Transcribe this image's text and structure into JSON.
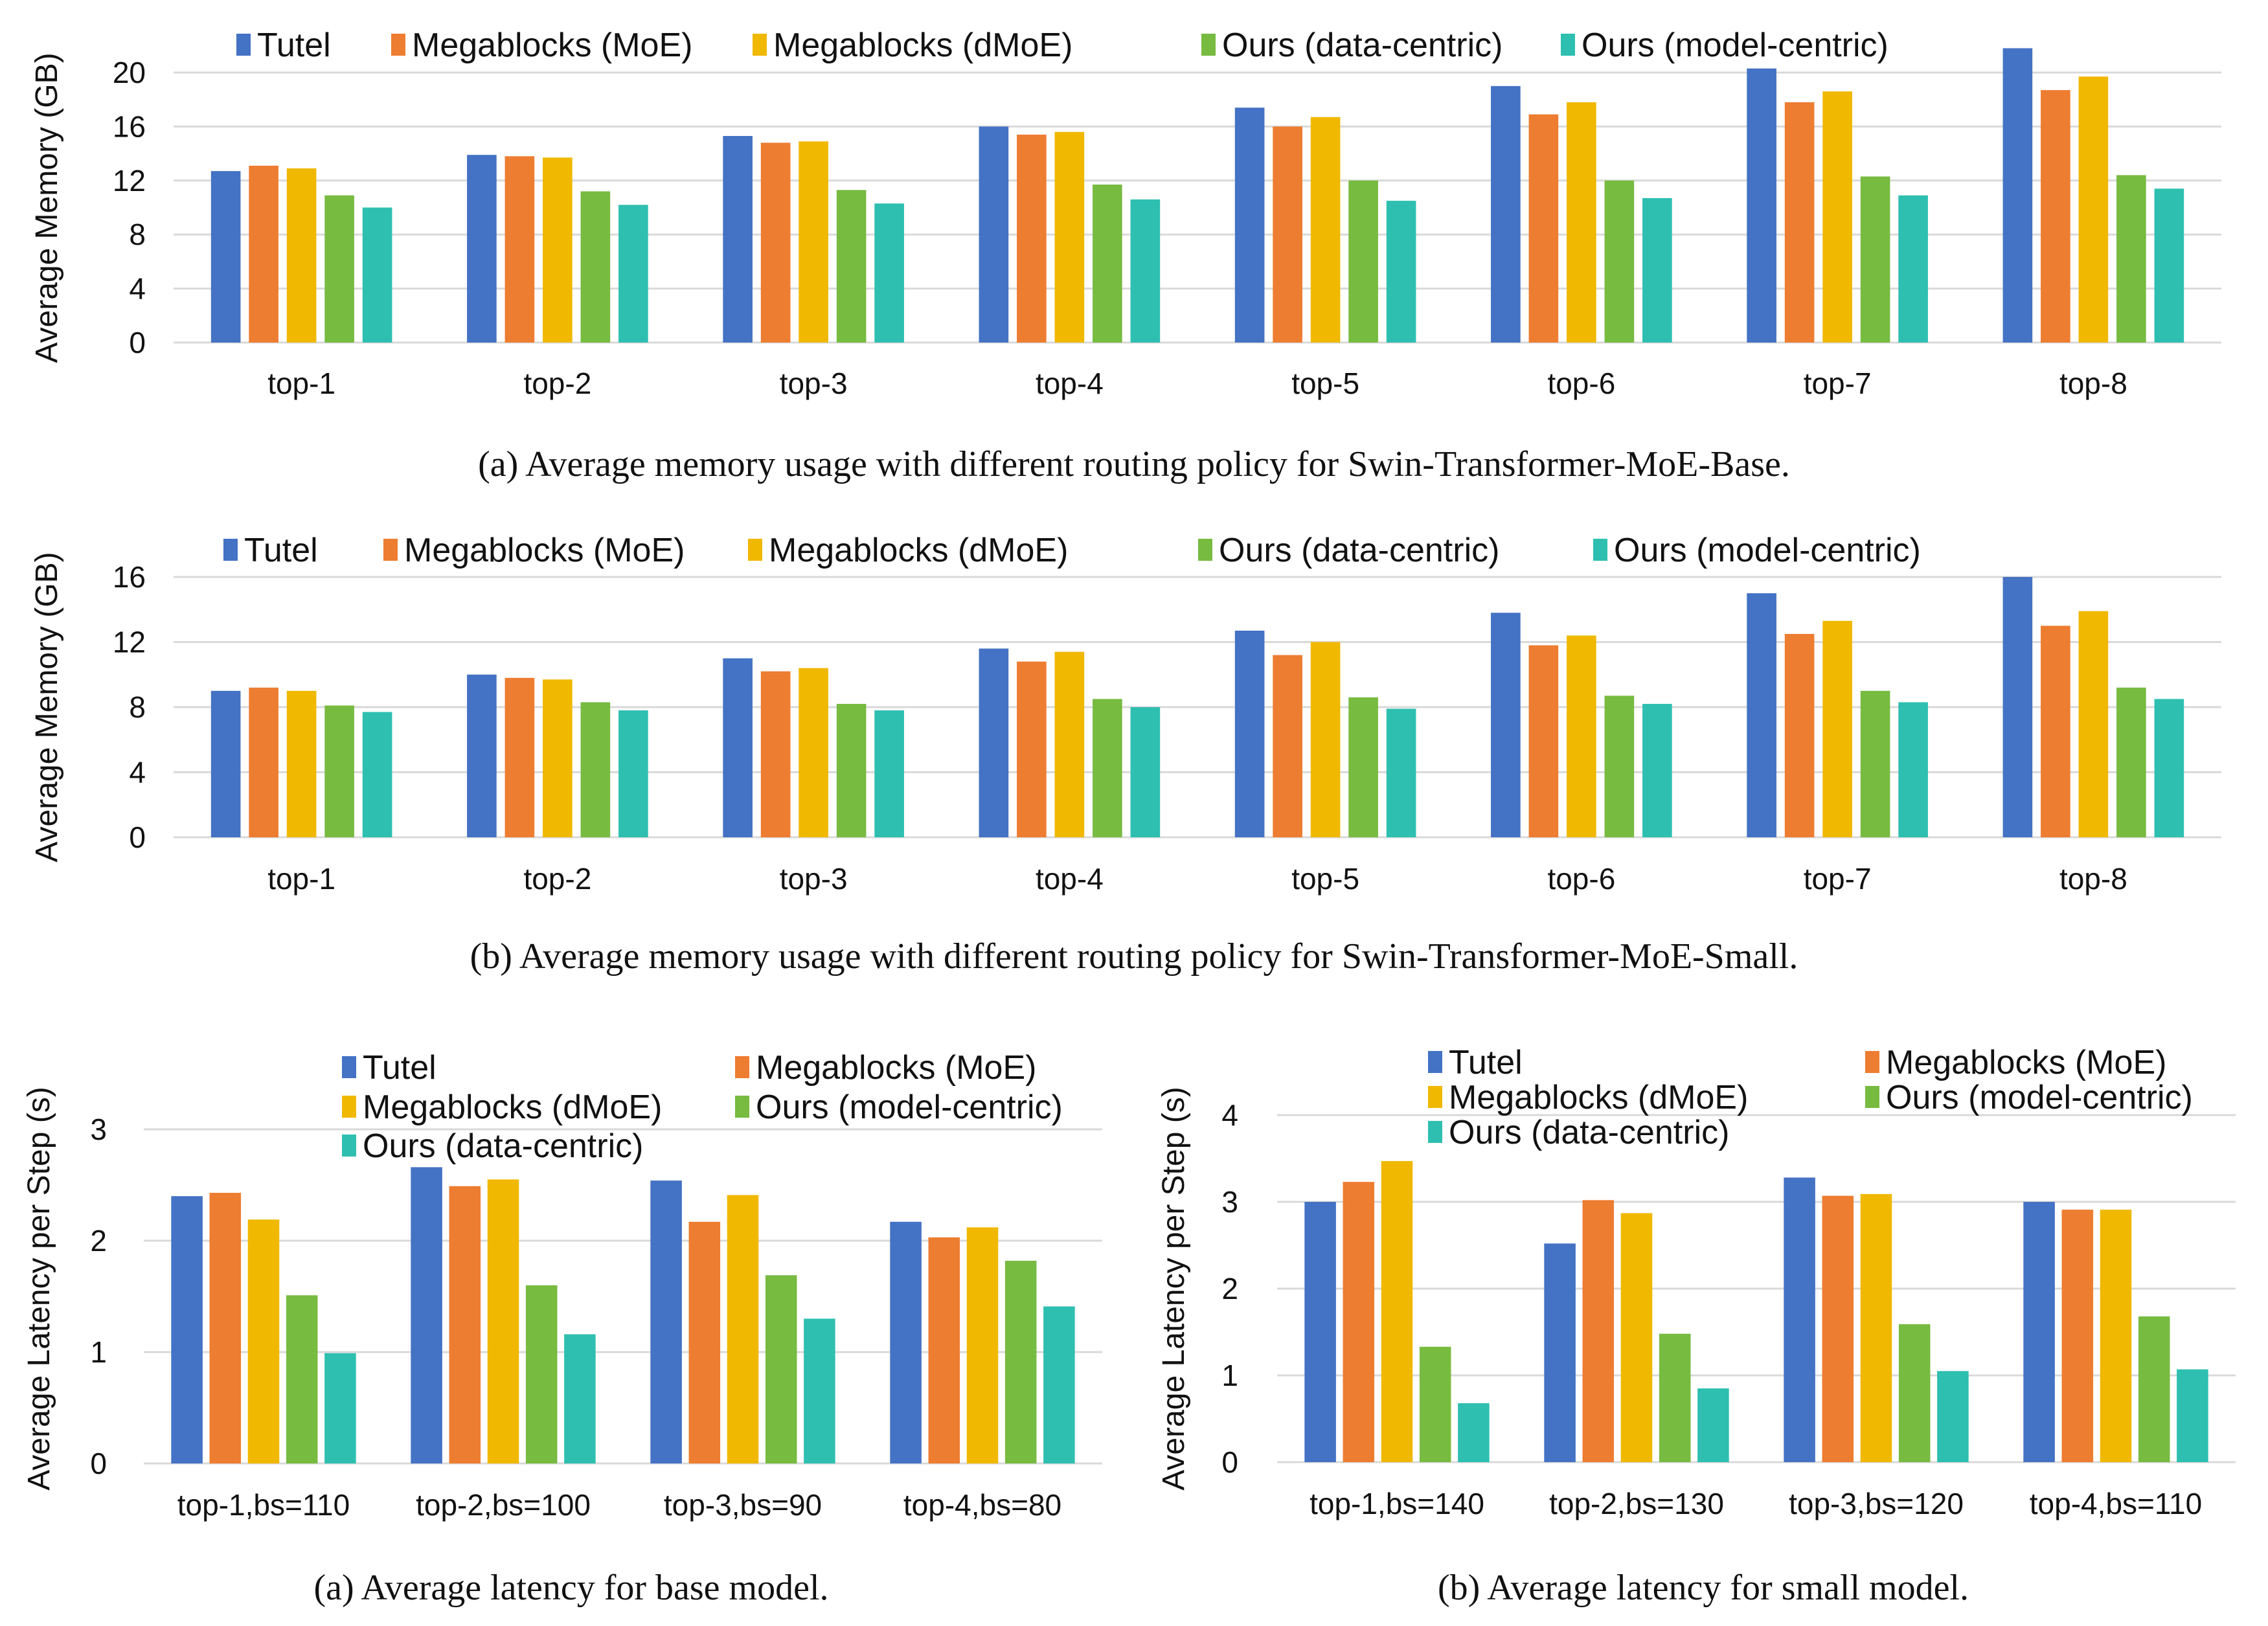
{
  "colors": {
    "Tutel": "#4472C4",
    "Megablocks (MoE)": "#ED7D31",
    "Megablocks (dMoE)": "#F0B800",
    "Ours (data-centric)": "#77BB41",
    "Ours (model-centric)": "#2EBFB0"
  },
  "chart_data": [
    {
      "id": "memory-base",
      "type": "bar",
      "title": "",
      "caption": "(a)  Average memory usage with different routing policy for Swin-Transformer-MoE-Base.",
      "xlabel": "",
      "ylabel": "Average Memory (GB)",
      "ylim": [
        0,
        20
      ],
      "yticks": [
        0,
        4,
        8,
        12,
        16,
        20
      ],
      "grid": true,
      "legend_position": "top",
      "categories": [
        "top-1",
        "top-2",
        "top-3",
        "top-4",
        "top-5",
        "top-6",
        "top-7",
        "top-8"
      ],
      "series": [
        {
          "name": "Tutel",
          "color_key": "Tutel",
          "values": [
            12.7,
            13.9,
            15.3,
            16.0,
            17.4,
            19.0,
            20.3,
            21.8
          ]
        },
        {
          "name": "Megablocks (MoE)",
          "color_key": "Megablocks (MoE)",
          "values": [
            13.1,
            13.8,
            14.8,
            15.4,
            16.0,
            16.9,
            17.8,
            18.7
          ]
        },
        {
          "name": "Megablocks (dMoE)",
          "color_key": "Megablocks (dMoE)",
          "values": [
            12.9,
            13.7,
            14.9,
            15.6,
            16.7,
            17.8,
            18.6,
            19.7
          ]
        },
        {
          "name": "Ours (data-centric)",
          "color_key": "Ours (data-centric)",
          "values": [
            10.9,
            11.2,
            11.3,
            11.7,
            12.0,
            12.0,
            12.3,
            12.4
          ]
        },
        {
          "name": "Ours (model-centric)",
          "color_key": "Ours (model-centric)",
          "values": [
            10.0,
            10.2,
            10.3,
            10.6,
            10.5,
            10.7,
            10.9,
            11.4
          ]
        }
      ]
    },
    {
      "id": "memory-small",
      "type": "bar",
      "title": "",
      "caption": "(b)  Average memory usage with different routing policy for Swin-Transformer-MoE-Small.",
      "xlabel": "",
      "ylabel": "Average Memory (GB)",
      "ylim": [
        0,
        16
      ],
      "yticks": [
        0,
        4,
        8,
        12,
        16
      ],
      "grid": true,
      "legend_position": "top",
      "categories": [
        "top-1",
        "top-2",
        "top-3",
        "top-4",
        "top-5",
        "top-6",
        "top-7",
        "top-8"
      ],
      "series": [
        {
          "name": "Tutel",
          "color_key": "Tutel",
          "values": [
            9.0,
            10.0,
            11.0,
            11.6,
            12.7,
            13.8,
            15.0,
            16.0
          ]
        },
        {
          "name": "Megablocks (MoE)",
          "color_key": "Megablocks (MoE)",
          "values": [
            9.2,
            9.8,
            10.2,
            10.8,
            11.2,
            11.8,
            12.5,
            13.0
          ]
        },
        {
          "name": "Megablocks (dMoE)",
          "color_key": "Megablocks (dMoE)",
          "values": [
            9.0,
            9.7,
            10.4,
            11.4,
            12.0,
            12.4,
            13.3,
            13.9
          ]
        },
        {
          "name": "Ours (data-centric)",
          "color_key": "Ours (data-centric)",
          "values": [
            8.1,
            8.3,
            8.2,
            8.5,
            8.6,
            8.7,
            9.0,
            9.2
          ]
        },
        {
          "name": "Ours (model-centric)",
          "color_key": "Ours (model-centric)",
          "values": [
            7.7,
            7.8,
            7.8,
            8.0,
            7.9,
            8.2,
            8.3,
            8.5
          ]
        }
      ]
    },
    {
      "id": "latency-base",
      "type": "bar",
      "title": "",
      "caption": "(a)  Average latency for base model.",
      "xlabel": "",
      "ylabel": "Average Latency per Step (s)",
      "ylim": [
        0,
        3
      ],
      "yticks": [
        0,
        1,
        2,
        3
      ],
      "grid": true,
      "legend_position": "top-right",
      "legend_order": [
        "Tutel",
        "Megablocks (MoE)",
        "Megablocks (dMoE)",
        "Ours (model-centric)",
        "Ours (data-centric)"
      ],
      "categories": [
        "top-1,bs=110",
        "top-2,bs=100",
        "top-3,bs=90",
        "top-4,bs=80"
      ],
      "series": [
        {
          "name": "Tutel",
          "color_key": "Tutel",
          "values": [
            2.4,
            2.66,
            2.54,
            2.17
          ]
        },
        {
          "name": "Megablocks (MoE)",
          "color_key": "Megablocks (MoE)",
          "values": [
            2.43,
            2.49,
            2.17,
            2.03
          ]
        },
        {
          "name": "Megablocks (dMoE)",
          "color_key": "Megablocks (dMoE)",
          "values": [
            2.19,
            2.55,
            2.41,
            2.12
          ]
        },
        {
          "name": "Ours (model-centric)",
          "color_key": "Ours (data-centric)",
          "values": [
            1.51,
            1.6,
            1.69,
            1.82
          ]
        },
        {
          "name": "Ours (data-centric)",
          "color_key": "Ours (model-centric)",
          "values": [
            0.99,
            1.16,
            1.3,
            1.41
          ]
        }
      ]
    },
    {
      "id": "latency-small",
      "type": "bar",
      "title": "",
      "caption": "(b)  Average latency for small model.",
      "xlabel": "",
      "ylabel": "Average Latency per Step (s)",
      "ylim": [
        0,
        4
      ],
      "yticks": [
        0,
        1,
        2,
        3,
        4
      ],
      "grid": true,
      "legend_position": "top-right",
      "legend_order": [
        "Tutel",
        "Megablocks (MoE)",
        "Megablocks (dMoE)",
        "Ours (model-centric)",
        "Ours (data-centric)"
      ],
      "categories": [
        "top-1,bs=140",
        "top-2,bs=130",
        "top-3,bs=120",
        "top-4,bs=110"
      ],
      "series": [
        {
          "name": "Tutel",
          "color_key": "Tutel",
          "values": [
            3.0,
            2.52,
            3.28,
            3.0
          ]
        },
        {
          "name": "Megablocks (MoE)",
          "color_key": "Megablocks (MoE)",
          "values": [
            3.23,
            3.02,
            3.07,
            2.91
          ]
        },
        {
          "name": "Megablocks (dMoE)",
          "color_key": "Megablocks (dMoE)",
          "values": [
            3.47,
            2.87,
            3.09,
            2.91
          ]
        },
        {
          "name": "Ours (model-centric)",
          "color_key": "Ours (data-centric)",
          "values": [
            1.33,
            1.48,
            1.59,
            1.68
          ]
        },
        {
          "name": "Ours (data-centric)",
          "color_key": "Ours (model-centric)",
          "values": [
            0.68,
            0.85,
            1.05,
            1.07
          ]
        }
      ]
    }
  ]
}
